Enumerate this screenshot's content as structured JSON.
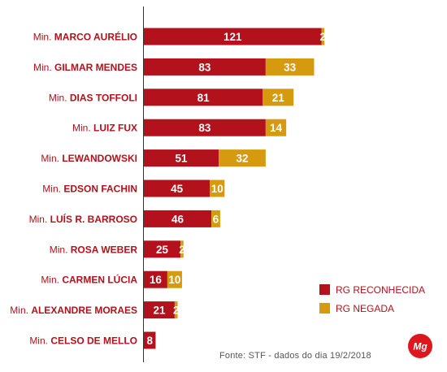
{
  "chart_data": {
    "type": "bar",
    "orientation": "horizontal",
    "stacked": true,
    "categories": [
      {
        "prefix": "Min.",
        "name": "MARCO AURÉLIO"
      },
      {
        "prefix": "Min.",
        "name": "GILMAR MENDES"
      },
      {
        "prefix": "Min.",
        "name": "DIAS TOFFOLI"
      },
      {
        "prefix": "Min.",
        "name": "LUIZ FUX"
      },
      {
        "prefix": "Min.",
        "name": "LEWANDOWSKI"
      },
      {
        "prefix": "Min.",
        "name": "EDSON FACHIN"
      },
      {
        "prefix": "Min.",
        "name": "LUÍS R. BARROSO"
      },
      {
        "prefix": "Min.",
        "name": "ROSA WEBER"
      },
      {
        "prefix": "Min.",
        "name": "CARMEN LÚCIA"
      },
      {
        "prefix": "Min.",
        "name": "ALEXANDRE MORAES"
      },
      {
        "prefix": "Min.",
        "name": "CELSO DE MELLO"
      }
    ],
    "series": [
      {
        "name": "RG RECONHECIDA",
        "color": "#b3111b",
        "values": [
          121,
          83,
          81,
          83,
          51,
          45,
          46,
          25,
          16,
          21,
          8
        ]
      },
      {
        "name": "RG NEGADA",
        "color": "#d69a0f",
        "values": [
          2,
          33,
          21,
          14,
          32,
          10,
          6,
          2,
          10,
          2,
          0
        ]
      }
    ],
    "xlim": [
      0,
      123
    ],
    "grid": false,
    "legend_position": "bottom-right",
    "source": "Fonte: STF - dados do dia 19/2/2018"
  },
  "logo": {
    "text": "Mg",
    "color": "#e0161e"
  }
}
